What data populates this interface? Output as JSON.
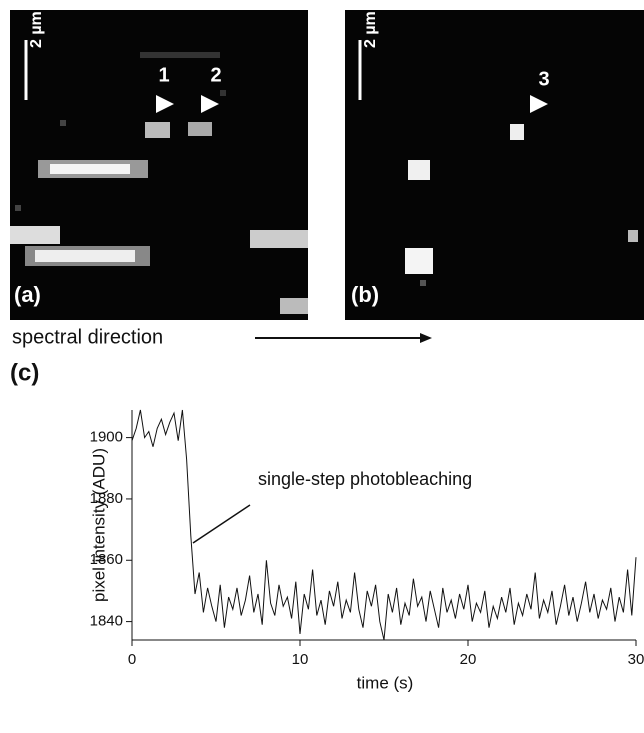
{
  "panels": {
    "a": {
      "label": "(a)",
      "scale_bar": "2 µm",
      "markers": [
        "1",
        "2"
      ]
    },
    "b": {
      "label": "(b)",
      "scale_bar": "2 µm",
      "markers": [
        "3"
      ]
    }
  },
  "spectral_direction": "spectral direction",
  "chart_data": {
    "type": "line",
    "panel_label": "(c)",
    "x_label": "time (s)",
    "y_label": "pixel intensity (ADU)",
    "annotation": "single-step photobleaching",
    "color": "#111111",
    "xlim": [
      0,
      30
    ],
    "ylim": [
      1834,
      1909
    ],
    "xticks": [
      0,
      10,
      20,
      30
    ],
    "yticks": [
      1840,
      1860,
      1880,
      1900
    ],
    "x": [
      0,
      0.25,
      0.5,
      0.75,
      1,
      1.25,
      1.5,
      1.75,
      2,
      2.25,
      2.5,
      2.75,
      3,
      3.25,
      3.5,
      3.75,
      4,
      4.25,
      4.5,
      4.75,
      5,
      5.25,
      5.5,
      5.75,
      6,
      6.25,
      6.5,
      6.75,
      7,
      7.25,
      7.5,
      7.75,
      8,
      8.25,
      8.5,
      8.75,
      9,
      9.25,
      9.5,
      9.75,
      10,
      10.25,
      10.5,
      10.75,
      11,
      11.25,
      11.5,
      11.75,
      12,
      12.25,
      12.5,
      12.75,
      13,
      13.25,
      13.5,
      13.75,
      14,
      14.25,
      14.5,
      14.75,
      15,
      15.25,
      15.5,
      15.75,
      16,
      16.25,
      16.5,
      16.75,
      17,
      17.25,
      17.5,
      17.75,
      18,
      18.25,
      18.5,
      18.75,
      19,
      19.25,
      19.5,
      19.75,
      20,
      20.25,
      20.5,
      20.75,
      21,
      21.25,
      21.5,
      21.75,
      22,
      22.25,
      22.5,
      22.75,
      23,
      23.25,
      23.5,
      23.75,
      24,
      24.25,
      24.5,
      24.75,
      25,
      25.25,
      25.5,
      25.75,
      26,
      26.25,
      26.5,
      26.75,
      27,
      27.25,
      27.5,
      27.75,
      28,
      28.25,
      28.5,
      28.75,
      29,
      29.25,
      29.5,
      29.75,
      30
    ],
    "values": [
      1899,
      1903,
      1909,
      1900,
      1902,
      1897,
      1903,
      1906,
      1901,
      1905,
      1908,
      1899,
      1909,
      1893,
      1868,
      1849,
      1856,
      1843,
      1851,
      1845,
      1840,
      1852,
      1838,
      1848,
      1844,
      1851,
      1842,
      1847,
      1855,
      1843,
      1849,
      1839,
      1860,
      1846,
      1842,
      1852,
      1845,
      1848,
      1841,
      1853,
      1836,
      1849,
      1844,
      1857,
      1842,
      1847,
      1839,
      1850,
      1845,
      1853,
      1841,
      1847,
      1843,
      1856,
      1844,
      1838,
      1850,
      1845,
      1852,
      1840,
      1834,
      1849,
      1843,
      1851,
      1839,
      1846,
      1842,
      1854,
      1845,
      1848,
      1840,
      1850,
      1844,
      1838,
      1851,
      1843,
      1847,
      1841,
      1849,
      1844,
      1852,
      1840,
      1846,
      1843,
      1850,
      1838,
      1845,
      1841,
      1848,
      1843,
      1851,
      1839,
      1846,
      1842,
      1849,
      1844,
      1856,
      1841,
      1847,
      1843,
      1850,
      1839,
      1845,
      1852,
      1842,
      1848,
      1840,
      1846,
      1853,
      1843,
      1849,
      1841,
      1847,
      1844,
      1851,
      1840,
      1848,
      1843,
      1857,
      1842,
      1861
    ]
  }
}
